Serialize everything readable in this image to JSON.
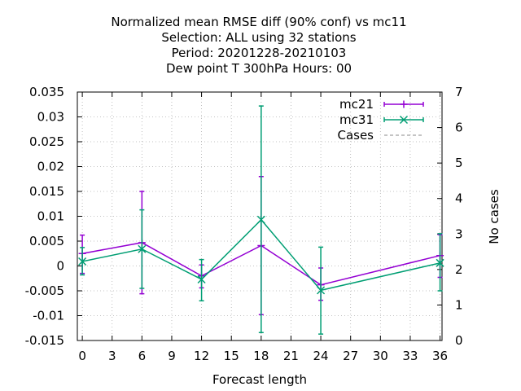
{
  "chart_data": {
    "type": "line",
    "title_lines": [
      "Normalized mean RMSE diff (90% conf) vs mc11",
      "Selection: ALL using    32 stations",
      "Period: 20201228-20210103",
      "Dew point T 300hPa   Hours:  00"
    ],
    "xlabel": "Forecast length",
    "ylabel": "",
    "y2label": "No cases",
    "xlim": [
      -0.5,
      36.2
    ],
    "ylim": [
      -0.015,
      0.035
    ],
    "y2lim": [
      0,
      7
    ],
    "x_ticks": [
      0,
      3,
      6,
      9,
      12,
      15,
      18,
      21,
      24,
      27,
      30,
      33,
      36
    ],
    "y_ticks": [
      -0.015,
      -0.01,
      -0.005,
      0,
      0.005,
      0.01,
      0.015,
      0.02,
      0.025,
      0.03,
      0.035
    ],
    "y_tick_labels": [
      "-0.015",
      "-0.01",
      "-0.005",
      "0",
      "0.005",
      "0.01",
      "0.015",
      "0.02",
      "0.025",
      "0.03",
      "0.035"
    ],
    "y2_ticks": [
      0,
      1,
      2,
      3,
      4,
      5,
      6,
      7
    ],
    "y2_tick_labels": [
      "0",
      "1",
      "2",
      "3",
      "4",
      "5",
      "6",
      "7"
    ],
    "grid": true,
    "legend_position": "top-right",
    "series": [
      {
        "name": "mc21",
        "color": "#9400d3",
        "marker": "plus",
        "x": [
          0,
          6,
          12,
          18,
          24,
          36
        ],
        "y": [
          0.0025,
          0.0047,
          -0.002,
          0.0041,
          -0.0038,
          0.0021
        ],
        "err_low": [
          -0.0015,
          -0.0056,
          -0.0044,
          -0.0098,
          -0.0069,
          -0.0023
        ],
        "err_high": [
          0.0062,
          0.015,
          0.0002,
          0.018,
          -0.0004,
          0.0063
        ]
      },
      {
        "name": "mc31",
        "color": "#009e73",
        "marker": "cross",
        "x": [
          0,
          6,
          12,
          18,
          24,
          36
        ],
        "y": [
          0.0009,
          0.0034,
          -0.0027,
          0.0093,
          -0.0049,
          0.0006
        ],
        "err_low": [
          -0.0018,
          -0.0045,
          -0.007,
          -0.0134,
          -0.0137,
          -0.005
        ],
        "err_high": [
          0.0037,
          0.0113,
          0.0013,
          0.0322,
          0.0038,
          0.0065
        ]
      },
      {
        "name": "Cases",
        "color": "#a0a0a0",
        "style": "dashed",
        "axis": "y2",
        "x": [],
        "y": []
      }
    ]
  }
}
